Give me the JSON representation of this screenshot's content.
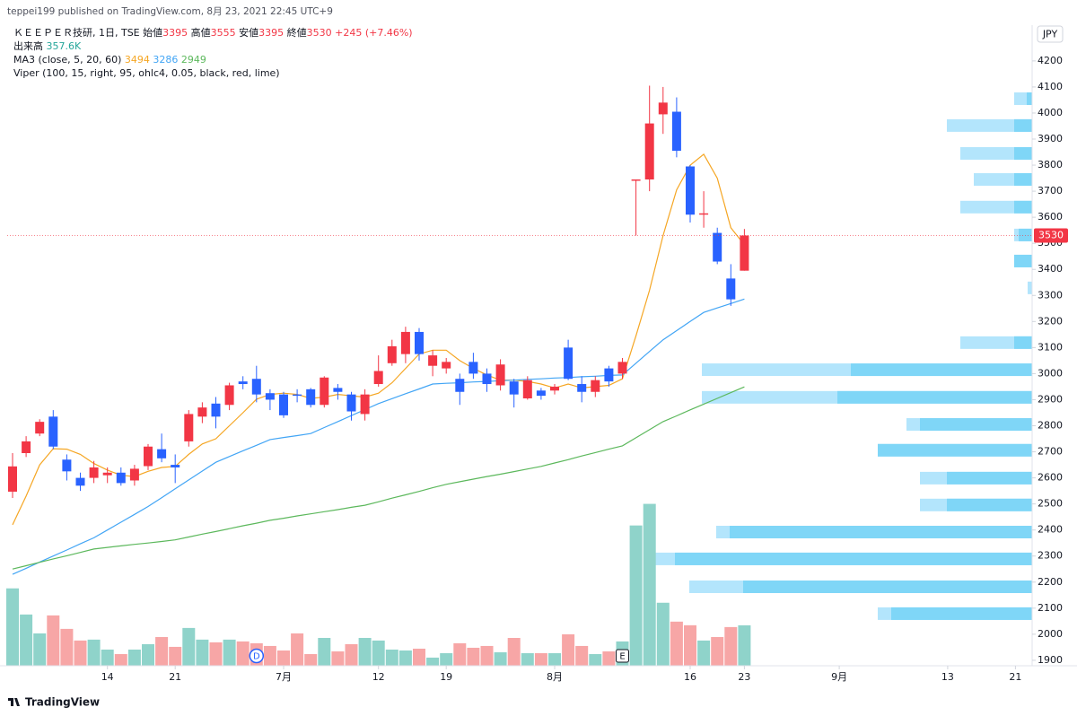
{
  "chart_data": {
    "type": "candlestick",
    "published": "teppei199 published on TradingView.com, 8月 23, 2021 22:45 UTC+9",
    "title": "ＫＥＥＰＥＲ技研, 1日, TSE",
    "ohlc_labels": [
      "始値",
      "高値",
      "安値",
      "終値"
    ],
    "change": "+245 (+7.46%)",
    "volume_title": "出来高",
    "volume_last_label": "357.6K",
    "ma_label": "MA3 (close, 5, 20, 60)",
    "viper_label": "Viper (100, 15, right, 95, ohlc4, 0.05, black, red, lime)",
    "currency": "JPY",
    "footer": "TradingView",
    "up_color": "#f23645",
    "down_color": "#2962ff",
    "volume_up_color": "#8fd3ca",
    "volume_down_color": "#f7a6a6",
    "candles": {
      "open": [
        2547,
        2695,
        2770,
        2835,
        2670,
        2600,
        2600,
        2610,
        2620,
        2590,
        2645,
        2710,
        2650,
        2740,
        2835,
        2885,
        2880,
        2970,
        2980,
        2925,
        2920,
        2920,
        2940,
        2880,
        2945,
        2920,
        2845,
        2960,
        3040,
        3075,
        3160,
        3030,
        3020,
        2980,
        3045,
        3000,
        2955,
        2970,
        2905,
        2935,
        2935,
        3100,
        2960,
        2930,
        3020,
        3000,
        3740,
        3745,
        3995,
        4005,
        3795,
        3610,
        3540,
        3365,
        3395
      ],
      "high": [
        2695,
        2760,
        2825,
        2860,
        2690,
        2620,
        2665,
        2640,
        2640,
        2650,
        2730,
        2770,
        2690,
        2860,
        2890,
        2910,
        2965,
        2990,
        3030,
        2940,
        2930,
        2940,
        2945,
        2990,
        2960,
        2930,
        2940,
        3070,
        3130,
        3180,
        3175,
        3090,
        3060,
        3000,
        3080,
        3020,
        3055,
        2980,
        2990,
        2945,
        2960,
        3130,
        2990,
        2990,
        3030,
        3060,
        3745,
        4105,
        4100,
        4060,
        3800,
        3700,
        3560,
        3420,
        3555
      ],
      "low": [
        2523,
        2680,
        2760,
        2710,
        2590,
        2550,
        2580,
        2580,
        2570,
        2570,
        2630,
        2660,
        2580,
        2720,
        2810,
        2790,
        2860,
        2940,
        2890,
        2860,
        2830,
        2890,
        2870,
        2870,
        2900,
        2820,
        2820,
        2950,
        3030,
        3040,
        3050,
        2990,
        3000,
        2880,
        2980,
        2930,
        2935,
        2870,
        2900,
        2900,
        2920,
        2975,
        2890,
        2910,
        2950,
        2980,
        3530,
        3700,
        3920,
        3830,
        3580,
        3560,
        3420,
        3260,
        3395
      ],
      "close": [
        2644,
        2740,
        2815,
        2720,
        2625,
        2570,
        2640,
        2620,
        2580,
        2635,
        2720,
        2675,
        2640,
        2845,
        2870,
        2835,
        2955,
        2960,
        2920,
        2900,
        2840,
        2915,
        2880,
        2985,
        2930,
        2855,
        2920,
        3010,
        3105,
        3160,
        3075,
        3070,
        3045,
        2930,
        3000,
        2960,
        3035,
        2920,
        2975,
        2915,
        2950,
        2980,
        2930,
        2975,
        2970,
        3045,
        3745,
        3960,
        4040,
        3855,
        3610,
        3615,
        3430,
        3285,
        3530
      ]
    },
    "volume": [
      684000,
      453000,
      286000,
      445000,
      326000,
      223000,
      231000,
      143000,
      103000,
      143000,
      191000,
      254000,
      167000,
      334000,
      231000,
      207000,
      231000,
      215000,
      199000,
      175000,
      135000,
      286000,
      103000,
      246000,
      127000,
      191000,
      246000,
      223000,
      143000,
      135000,
      151000,
      72000,
      111000,
      199000,
      159000,
      175000,
      119000,
      246000,
      111000,
      111000,
      111000,
      278000,
      175000,
      103000,
      127000,
      215000,
      1240000,
      1431000,
      557000,
      390000,
      358000,
      223000,
      254000,
      342000,
      357600
    ],
    "volume_ylim": [
      0,
      4600000
    ],
    "ma": [
      {
        "color": "#f5a623",
        "values": [
          2420,
          2530,
          2650,
          2712,
          2710,
          2690,
          2655,
          2630,
          2610,
          2605,
          2625,
          2640,
          2644,
          2690,
          2730,
          2750,
          2800,
          2850,
          2902,
          2920,
          2925,
          2920,
          2905,
          2910,
          2920,
          2915,
          2910,
          2925,
          2965,
          3020,
          3075,
          3090,
          3090,
          3050,
          3020,
          2995,
          2975,
          2975,
          2970,
          2960,
          2945,
          2960,
          2945,
          2950,
          2955,
          2980,
          3145,
          3320,
          3530,
          3705,
          3800,
          3842,
          3750,
          3560,
          3494
        ]
      },
      {
        "color": "#42a5f5",
        "values": [
          2230,
          2253,
          2277,
          2300,
          2323,
          2347,
          2370,
          2400,
          2430,
          2460,
          2490,
          2524,
          2558,
          2592,
          2626,
          2660,
          2682,
          2704,
          2725,
          2747,
          2755,
          2762,
          2770,
          2793,
          2816,
          2839,
          2862,
          2885,
          2904,
          2923,
          2941,
          2960,
          2963,
          2965,
          2968,
          2970,
          2973,
          2975,
          2978,
          2980,
          2983,
          2985,
          2988,
          2990,
          2993,
          2995,
          3040,
          3085,
          3130,
          3165,
          3200,
          3235,
          3252,
          3269,
          3286
        ]
      },
      {
        "color": "#5cb85c",
        "values": [
          2250,
          2263,
          2276,
          2289,
          2301,
          2314,
          2327,
          2333,
          2339,
          2345,
          2350,
          2356,
          2362,
          2373,
          2384,
          2394,
          2405,
          2416,
          2426,
          2437,
          2445,
          2454,
          2462,
          2470,
          2478,
          2487,
          2495,
          2508,
          2522,
          2535,
          2548,
          2562,
          2575,
          2585,
          2595,
          2605,
          2614,
          2624,
          2634,
          2644,
          2657,
          2670,
          2684,
          2697,
          2710,
          2723,
          2754,
          2785,
          2816,
          2838,
          2861,
          2883,
          2905,
          2927,
          2949
        ]
      }
    ],
    "volume_profile": {
      "light_color": "#b3e5fc",
      "dark_color": "#7fd6f7",
      "prices": [
        4055,
        3952,
        3845,
        3745,
        3639,
        3532,
        3432,
        3329,
        3119,
        3015,
        2909,
        2805,
        2706,
        2599,
        2496,
        2392,
        2289,
        2182,
        2079
      ],
      "total": [
        20,
        95,
        80,
        65,
        80,
        20,
        20,
        5,
        80,
        368,
        368,
        140,
        172,
        125,
        125,
        352,
        428,
        382,
        172
      ],
      "up": [
        6,
        20,
        20,
        20,
        20,
        15,
        20,
        0,
        20,
        202,
        217,
        125,
        172,
        95,
        95,
        337,
        398,
        322,
        157
      ]
    },
    "profile_xlim": [
      0,
      1142
    ],
    "ylim": [
      1879,
      4234
    ],
    "yticks": [
      1900,
      2000,
      2100,
      2200,
      2300,
      2400,
      2500,
      2600,
      2700,
      2800,
      2900,
      3000,
      3100,
      3200,
      3300,
      3400,
      3500,
      3600,
      3700,
      3800,
      3900,
      4000,
      4100,
      4200
    ],
    "xticks": [
      {
        "value": 7,
        "label": "14"
      },
      {
        "value": 12,
        "label": "21"
      },
      {
        "value": 20,
        "label": "7月"
      },
      {
        "value": 27,
        "label": "12"
      },
      {
        "value": 32,
        "label": "19"
      },
      {
        "value": 40,
        "label": "8月"
      },
      {
        "value": 50,
        "label": "16"
      },
      {
        "value": 54,
        "label": "23"
      },
      {
        "value": 61,
        "label": "9月"
      },
      {
        "value": 69,
        "label": "13"
      },
      {
        "value": 74,
        "label": "21"
      }
    ],
    "events": [
      {
        "index": 18,
        "label": "D"
      },
      {
        "index": 45,
        "label": "E"
      }
    ]
  }
}
